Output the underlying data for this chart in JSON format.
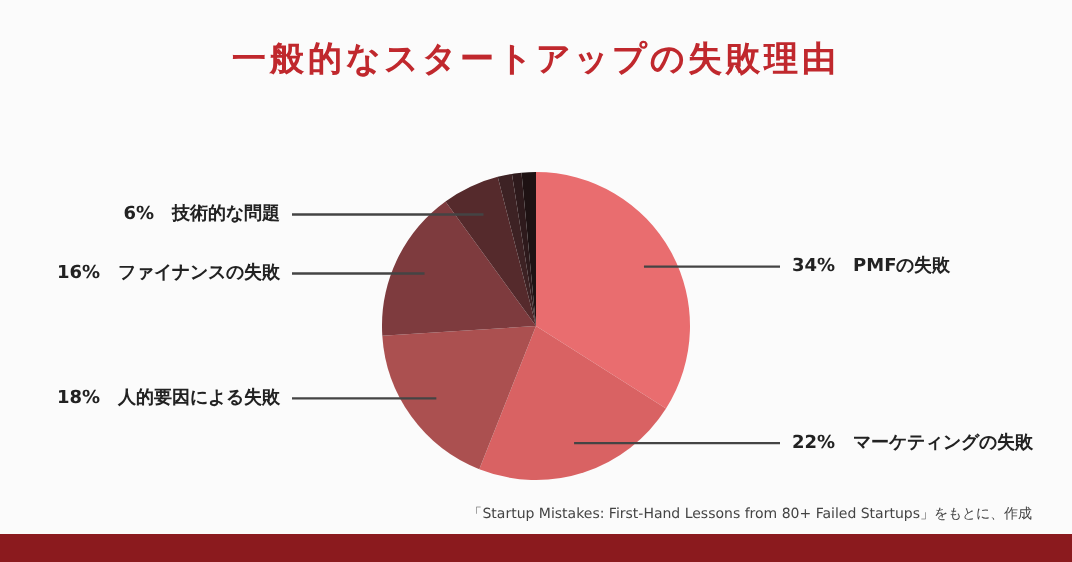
{
  "chart_data": {
    "type": "pie",
    "title": "一般的なスタートアップの失敗理由",
    "categories": [
      "PMFの失敗",
      "マーケティングの失敗",
      "人的要因による失敗",
      "ファイナンスの失敗",
      "技術的な問題",
      null,
      null,
      null
    ],
    "values": [
      34,
      22,
      18,
      16,
      6,
      1.5,
      1,
      1.5
    ],
    "value_labels": [
      "34%",
      "22%",
      "18%",
      "16%",
      "6%",
      null,
      null,
      null
    ],
    "colors": [
      "#e96d6f",
      "#d96263",
      "#ab5050",
      "#7e3b3e",
      "#552a2c",
      "#3d2224",
      "#2e1a1c",
      "#1e1213"
    ],
    "legend": false,
    "annotations": [
      "「Startup Mistakes: First-Hand Lessons from 80+ Failed Startups」をもとに、作成"
    ]
  }
}
